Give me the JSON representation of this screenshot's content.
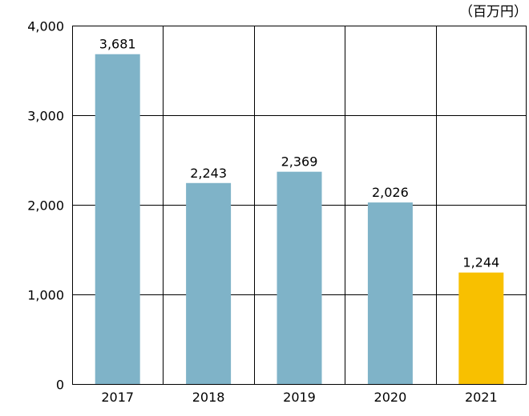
{
  "chart_data": {
    "type": "bar",
    "unit_label": "（百万円）",
    "categories": [
      "2017",
      "2018",
      "2019",
      "2020",
      "2021"
    ],
    "values": [
      3681,
      2243,
      2369,
      2026,
      1244
    ],
    "value_labels": [
      "3,681",
      "2,243",
      "2,369",
      "2,026",
      "1,244"
    ],
    "ylim": [
      0,
      4000
    ],
    "yticks": [
      0,
      1000,
      2000,
      3000,
      4000
    ],
    "ytick_labels": [
      "0",
      "1,000",
      "2,000",
      "3,000",
      "4,000"
    ],
    "grid": true,
    "bar_colors": [
      "#7fb3c8",
      "#7fb3c8",
      "#7fb3c8",
      "#7fb3c8",
      "#f8c000"
    ],
    "title": "",
    "xlabel": "",
    "ylabel": ""
  }
}
